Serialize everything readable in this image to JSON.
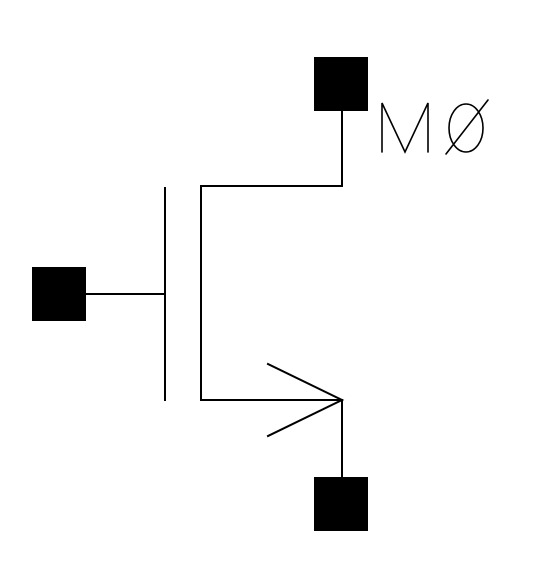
{
  "schematic": {
    "component_type": "NMOS transistor",
    "instance_label": "MØ",
    "terminals": [
      "drain",
      "gate",
      "source"
    ],
    "line_color": "#000000",
    "background_color": "#ffffff"
  }
}
